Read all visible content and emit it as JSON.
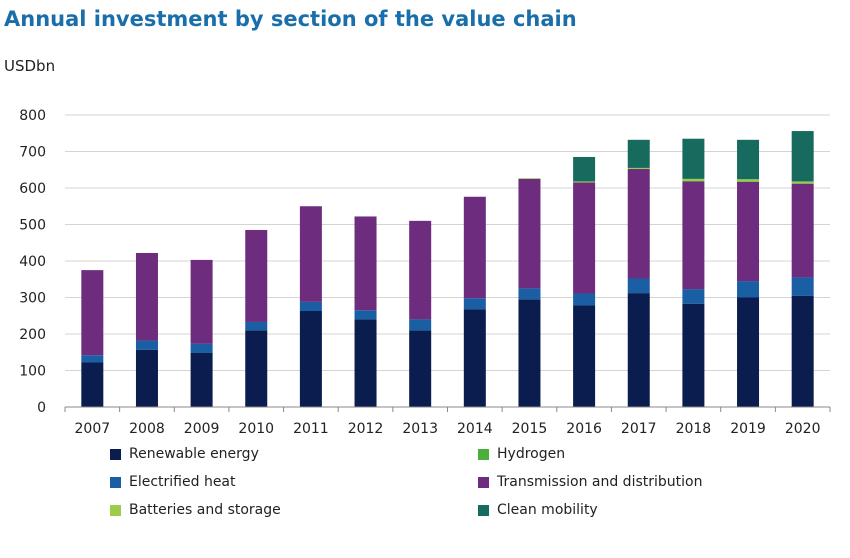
{
  "title": "Annual investment by section of the value chain",
  "unit": "USDbn",
  "chart_data": {
    "type": "bar",
    "stacked": true,
    "title": "Annual investment by section of the value chain",
    "ylabel": "USDbn",
    "xlabel": "",
    "ylim": [
      0,
      800
    ],
    "yticks": [
      0,
      100,
      200,
      300,
      400,
      500,
      600,
      700,
      800
    ],
    "grid": true,
    "legend_position": "bottom",
    "categories": [
      "2007",
      "2008",
      "2009",
      "2010",
      "2011",
      "2012",
      "2013",
      "2014",
      "2015",
      "2016",
      "2017",
      "2018",
      "2019",
      "2020"
    ],
    "series": [
      {
        "name": "Renewable energy",
        "color": "#0b1d4e",
        "values": [
          122,
          157,
          148,
          210,
          263,
          240,
          210,
          268,
          295,
          278,
          312,
          283,
          300,
          305
        ]
      },
      {
        "name": "Electrified heat",
        "color": "#1a5fa3",
        "values": [
          20,
          25,
          25,
          23,
          25,
          25,
          30,
          30,
          30,
          33,
          40,
          40,
          45,
          50
        ]
      },
      {
        "name": "Transmission and distribution",
        "color": "#6d2c7e",
        "values": [
          233,
          240,
          230,
          252,
          262,
          257,
          270,
          278,
          300,
          304,
          300,
          295,
          272,
          257
        ]
      },
      {
        "name": "Hydrogen",
        "color": "#4caf3a",
        "values": [
          0,
          0,
          0,
          0,
          0,
          0,
          0,
          0,
          0,
          0,
          0,
          1,
          1,
          1
        ]
      },
      {
        "name": "Batteries and storage",
        "color": "#9ecb4a",
        "values": [
          0,
          0,
          0,
          0,
          0,
          0,
          0,
          0,
          2,
          3,
          3,
          6,
          6,
          5
        ]
      },
      {
        "name": "Clean mobility",
        "color": "#176b5e",
        "values": [
          0,
          0,
          0,
          0,
          0,
          0,
          0,
          0,
          0,
          67,
          77,
          110,
          108,
          138
        ]
      }
    ]
  },
  "legend": [
    {
      "label": "Renewable energy",
      "color": "#0b1d4e"
    },
    {
      "label": "Hydrogen",
      "color": "#4caf3a"
    },
    {
      "label": "Electrified heat",
      "color": "#1a5fa3"
    },
    {
      "label": "Transmission and distribution",
      "color": "#6d2c7e"
    },
    {
      "label": "Batteries and storage",
      "color": "#9ecb4a"
    },
    {
      "label": "Clean mobility",
      "color": "#176b5e"
    }
  ]
}
